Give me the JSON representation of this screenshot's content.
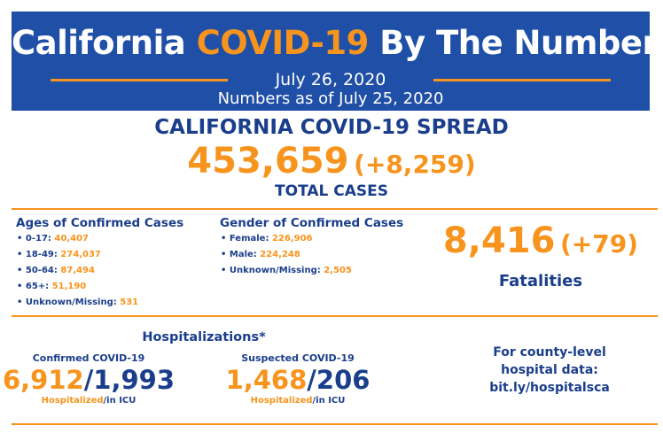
{
  "header": {
    "title_part1": "California",
    "title_highlight": "COVID-19",
    "title_part2": "By The Numbers",
    "date": "July 26, 2020",
    "numbers_as_of": "Numbers as of July 25, 2020",
    "colors": {
      "banner": "#1f4fa6",
      "accent": "#f7941d",
      "navy": "#1a3e8c"
    }
  },
  "spread": {
    "heading": "CALIFORNIA COVID-19 SPREAD",
    "total": "453,659",
    "delta": "(+8,259)",
    "label": "TOTAL CASES"
  },
  "ages": {
    "title": "Ages of Confirmed Cases",
    "items": [
      {
        "label": "• 0-17: ",
        "value": "40,407"
      },
      {
        "label": "• 18-49: ",
        "value": "274,037"
      },
      {
        "label": "• 50-64: ",
        "value": "87,494"
      },
      {
        "label": "• 65+: ",
        "value": "51,190"
      },
      {
        "label": "• Unknown/Missing: ",
        "value": "531"
      }
    ]
  },
  "gender": {
    "title": "Gender of Confirmed Cases",
    "items": [
      {
        "label": "• Female: ",
        "value": "226,906"
      },
      {
        "label": "• Male: ",
        "value": "224,248"
      },
      {
        "label": "• Unknown/Missing: ",
        "value": "2,505"
      }
    ]
  },
  "fatalities": {
    "total": "8,416",
    "delta": "(+79)",
    "label": "Fatalities"
  },
  "hospitalizations": {
    "heading": "Hospitalizations*",
    "confirmed": {
      "label": "Confirmed COVID-19",
      "hospitalized": "6,912",
      "separator": "/",
      "icu": "1,993",
      "hosp_caption": "Hospitalized",
      "icu_caption": "/in ICU"
    },
    "suspected": {
      "label": "Suspected COVID-19",
      "hospitalized": "1,468",
      "separator": "/",
      "icu": "206",
      "hosp_caption": "Hospitalized",
      "icu_caption": "/in ICU"
    }
  },
  "county": {
    "line1": "For county-level",
    "line2": "hospital data:",
    "line3": "bit.ly/hospitalsca"
  }
}
